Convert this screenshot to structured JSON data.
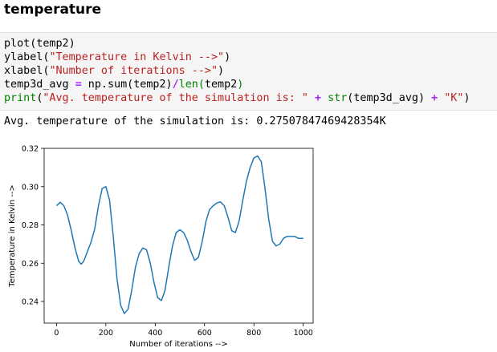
{
  "heading": "temperature",
  "code_cell": {
    "line1": "plot(temp2)",
    "line2_fn": "ylabel(",
    "line2_str": "\"Temperature in Kelvin -->\"",
    "line2_end": ")",
    "line3_fn": "xlabel(",
    "line3_str": "\"Number of iterations -->\"",
    "line3_end": ")",
    "line4_a": "temp3d_avg ",
    "line4_eq": "=",
    "line4_b": " np.sum(temp2)",
    "line4_div": "/",
    "line4_len": "len(",
    "line4_c": "temp2",
    "line4_close": ")",
    "line5_print": "print",
    "line5_open": "(",
    "line5_str": "\"Avg. temperature of the simulation is: \"",
    "line5_plus1": "+",
    "line5_strfn": "str",
    "line5_arg": "(temp3d_avg)",
    "line5_plus2": "+",
    "line5_k": "\"K\"",
    "line5_end": ")"
  },
  "output_text": "Avg. temperature of the simulation is: 0.27507847469428354K",
  "colors": {
    "line": "#1f77b4",
    "string": "#ba2121",
    "operator": "#aa22ff",
    "builtin": "#008000",
    "cell_bg": "#f5f5f5"
  },
  "chart_data": {
    "type": "line",
    "title": "",
    "xlabel": "Number of iterations -->",
    "ylabel": "Temperature in Kelvin -->",
    "xlim": [
      -50,
      1040
    ],
    "ylim": [
      0.2287,
      0.32
    ],
    "xticks": [
      0,
      200,
      400,
      600,
      800,
      1000
    ],
    "yticks": [
      0.24,
      0.26,
      0.28,
      0.3,
      0.32
    ],
    "xtick_labels": [
      "0",
      "200",
      "400",
      "600",
      "800",
      "1000"
    ],
    "ytick_labels": [
      "0.24",
      "0.26",
      "0.28",
      "0.30",
      "0.32"
    ],
    "grid": false,
    "series": [
      {
        "x": [
          0,
          15,
          30,
          45,
          60,
          75,
          90,
          100,
          110,
          125,
          140,
          155,
          170,
          185,
          200,
          215,
          230,
          245,
          260,
          275,
          290,
          305,
          320,
          335,
          350,
          365,
          380,
          395,
          410,
          425,
          440,
          455,
          470,
          485,
          500,
          515,
          530,
          545,
          560,
          575,
          590,
          605,
          620,
          635,
          650,
          665,
          680,
          695,
          710,
          725,
          740,
          755,
          770,
          785,
          800,
          815,
          830,
          845,
          860,
          875,
          890,
          905,
          920,
          935,
          950,
          965,
          980,
          995,
          1000
        ],
        "y": [
          0.29,
          0.2918,
          0.29,
          0.285,
          0.277,
          0.268,
          0.261,
          0.2595,
          0.261,
          0.266,
          0.271,
          0.278,
          0.29,
          0.299,
          0.3,
          0.293,
          0.274,
          0.252,
          0.238,
          0.2337,
          0.236,
          0.246,
          0.258,
          0.265,
          0.268,
          0.267,
          0.26,
          0.25,
          0.242,
          0.2405,
          0.246,
          0.258,
          0.269,
          0.276,
          0.2775,
          0.276,
          0.272,
          0.266,
          0.2615,
          0.263,
          0.271,
          0.2815,
          0.288,
          0.29,
          0.2915,
          0.292,
          0.29,
          0.284,
          0.277,
          0.276,
          0.282,
          0.293,
          0.303,
          0.31,
          0.315,
          0.316,
          0.313,
          0.299,
          0.283,
          0.2715,
          0.269,
          0.27,
          0.273,
          0.274,
          0.274,
          0.274,
          0.273,
          0.273,
          0.273
        ]
      }
    ]
  }
}
